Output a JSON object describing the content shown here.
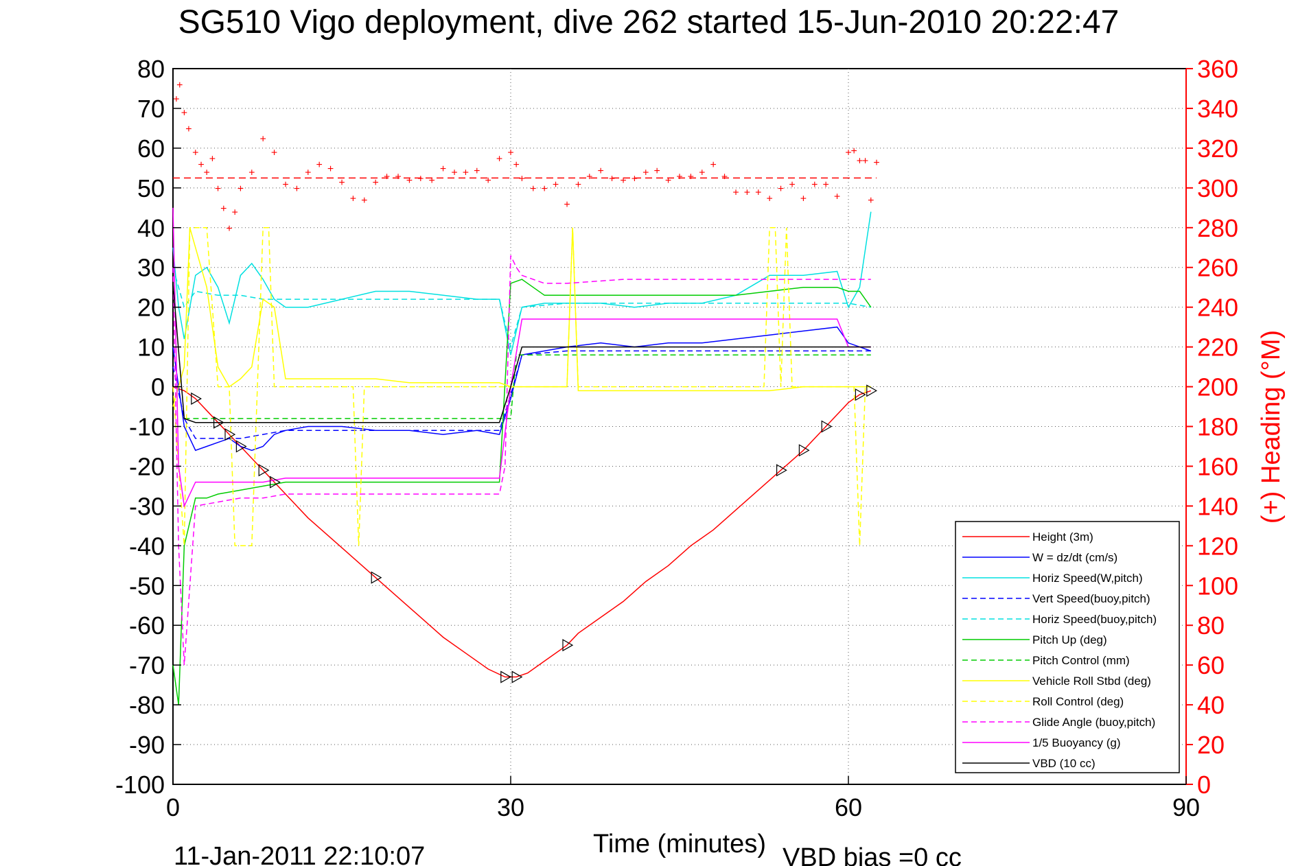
{
  "chart_data": {
    "type": "line",
    "title": "SG510 Vigo deployment, dive 262 started 15-Jun-2010 20:22:47",
    "xlabel": "Time (minutes)",
    "ylabel_right": "(+) Heading (°M)",
    "footer_date": "11-Jan-2011 22:10:07",
    "footer_vbd": "VBD bias =0 cc",
    "xlim": [
      0,
      90
    ],
    "ylim": [
      -100,
      80
    ],
    "ylim_right": [
      0,
      360
    ],
    "xticks": [
      0,
      30,
      60,
      90
    ],
    "yticks": [
      80,
      70,
      60,
      50,
      40,
      30,
      20,
      10,
      0,
      -10,
      -20,
      -30,
      -40,
      -50,
      -60,
      -70,
      -80,
      -90,
      -100
    ],
    "yticks_right": [
      360,
      340,
      320,
      300,
      280,
      260,
      240,
      220,
      200,
      180,
      160,
      140,
      120,
      100,
      80,
      60,
      40,
      20,
      0
    ],
    "grid": true,
    "legend_position": "bottom-right",
    "series": [
      {
        "name": "Height (3m)",
        "color": "#ff0000",
        "dash": "solid",
        "x": [
          0,
          1,
          2,
          3,
          4,
          5,
          6,
          7,
          8,
          9,
          10,
          12,
          14,
          16,
          18,
          20,
          22,
          24,
          26,
          28,
          29.5,
          30.5,
          31.5,
          33,
          35,
          36,
          38,
          40,
          42,
          44,
          46,
          48,
          50,
          52,
          54,
          56,
          58,
          60,
          61,
          62
        ],
        "y": [
          0,
          -1,
          -3,
          -6,
          -9,
          -12,
          -15,
          -18,
          -21,
          -24,
          -27,
          -33,
          -38,
          -43,
          -48,
          -53,
          -58,
          -63,
          -67,
          -71,
          -73,
          -73,
          -72,
          -69,
          -65,
          -62,
          -58,
          -54,
          -49,
          -45,
          -40,
          -36,
          -31,
          -26,
          -21,
          -16,
          -10,
          -4,
          -2,
          -1
        ]
      },
      {
        "name": "W = dz/dt (cm/s)",
        "color": "#0000ff",
        "dash": "solid",
        "x": [
          0,
          0.5,
          1,
          2,
          3,
          4,
          5,
          6,
          7,
          8,
          9,
          10,
          12,
          15,
          18,
          21,
          24,
          27,
          29,
          30,
          31,
          33,
          35,
          38,
          41,
          44,
          47,
          50,
          53,
          56,
          59,
          60,
          61,
          62
        ],
        "y": [
          10,
          0,
          -10,
          -16,
          -15,
          -14,
          -13,
          -15,
          -16,
          -15,
          -12,
          -11,
          -10,
          -10,
          -11,
          -11,
          -12,
          -11,
          -12,
          -3,
          8,
          9,
          10,
          11,
          10,
          11,
          11,
          12,
          13,
          14,
          15,
          11,
          10,
          9
        ]
      },
      {
        "name": "Horiz Speed(W,pitch)",
        "color": "#00e0e0",
        "dash": "solid",
        "x": [
          0,
          0.5,
          1,
          2,
          3,
          4,
          5,
          6,
          7,
          8,
          9,
          10,
          12,
          15,
          18,
          21,
          24,
          27,
          29,
          30,
          31,
          33,
          35,
          38,
          41,
          44,
          47,
          50,
          53,
          56,
          59,
          60,
          61,
          62
        ],
        "y": [
          35,
          20,
          12,
          28,
          30,
          25,
          16,
          28,
          31,
          27,
          22,
          20,
          20,
          22,
          24,
          24,
          23,
          22,
          22,
          8,
          20,
          21,
          21,
          21,
          20,
          21,
          21,
          23,
          28,
          28,
          29,
          20,
          25,
          44
        ]
      },
      {
        "name": "Vert Speed(buoy,pitch)",
        "color": "#0000ff",
        "dash": "dashed",
        "x": [
          0,
          1,
          2,
          4,
          6,
          8,
          10,
          15,
          20,
          25,
          29,
          30,
          31,
          35,
          40,
          45,
          50,
          55,
          60,
          62
        ],
        "y": [
          5,
          -8,
          -13,
          -13,
          -13,
          -12,
          -11,
          -11,
          -11,
          -11,
          -11,
          -2,
          8,
          9,
          9,
          9,
          9,
          9,
          9,
          9
        ]
      },
      {
        "name": "Horiz Speed(buoy,pitch)",
        "color": "#00e0e0",
        "dash": "dashed",
        "x": [
          0,
          1,
          2,
          4,
          6,
          8,
          10,
          15,
          20,
          25,
          29,
          30,
          31,
          35,
          40,
          45,
          50,
          55,
          60,
          62
        ],
        "y": [
          30,
          20,
          24,
          23,
          23,
          22,
          22,
          22,
          22,
          22,
          22,
          10,
          20,
          21,
          21,
          21,
          21,
          21,
          21,
          20
        ]
      },
      {
        "name": "Pitch Up (deg)",
        "color": "#00cc00",
        "dash": "solid",
        "x": [
          0,
          0.5,
          1,
          2,
          3,
          4,
          6,
          8,
          10,
          15,
          20,
          25,
          28,
          29,
          30,
          31,
          33,
          35,
          38,
          41,
          44,
          47,
          50,
          53,
          56,
          59,
          60,
          61,
          62
        ],
        "y": [
          -70,
          -80,
          -40,
          -28,
          -28,
          -27,
          -26,
          -25,
          -24,
          -24,
          -24,
          -24,
          -24,
          -24,
          26,
          27,
          23,
          23,
          23,
          23,
          23,
          23,
          23,
          24,
          25,
          25,
          24,
          24,
          20
        ]
      },
      {
        "name": "Pitch Control (mm)",
        "color": "#00cc00",
        "dash": "dashed",
        "x": [
          1,
          29,
          30,
          30.5,
          62
        ],
        "y": [
          -8,
          -8,
          -8,
          8,
          8
        ]
      },
      {
        "name": "Vehicle Roll Stbd (deg)",
        "color": "#ffff00",
        "dash": "solid",
        "x": [
          0,
          0.5,
          1,
          1.5,
          2,
          2.5,
          3,
          4,
          5,
          6,
          7,
          8,
          9,
          10,
          12,
          15,
          18,
          21,
          24,
          27,
          29,
          30,
          31,
          33,
          35,
          35.5,
          36,
          38,
          41,
          44,
          47,
          50,
          53,
          56,
          59,
          60,
          61,
          62
        ],
        "y": [
          -5,
          0,
          5,
          40,
          35,
          30,
          25,
          5,
          0,
          2,
          5,
          22,
          20,
          2,
          2,
          2,
          2,
          1,
          1,
          1,
          1,
          0,
          0,
          0,
          0,
          40,
          -1,
          -1,
          -1,
          -1,
          -1,
          -1,
          -1,
          0,
          0,
          0,
          0,
          0
        ]
      },
      {
        "name": "Roll Control (deg)",
        "color": "#ffff00",
        "dash": "dashed",
        "x": [
          0,
          1,
          1.5,
          2,
          2.5,
          3,
          4,
          5,
          5.5,
          6,
          7,
          8,
          8.5,
          9,
          16,
          16.5,
          17,
          30,
          35,
          35.5,
          36,
          52.5,
          53,
          53.5,
          54,
          54.5,
          55,
          60.5,
          61,
          61.5,
          62
        ],
        "y": [
          0,
          -40,
          40,
          40,
          40,
          40,
          0,
          0,
          -40,
          -40,
          -40,
          40,
          40,
          0,
          0,
          -40,
          0,
          0,
          0,
          40,
          0,
          0,
          40,
          40,
          0,
          40,
          0,
          0,
          -40,
          0,
          0
        ]
      },
      {
        "name": "Glide Angle (buoy,pitch)",
        "color": "#ff00ff",
        "dash": "dashed",
        "x": [
          0,
          0.5,
          1,
          2,
          4,
          6,
          8,
          10,
          15,
          20,
          25,
          29,
          29.5,
          30,
          30.5,
          31,
          33,
          35,
          40,
          45,
          50,
          55,
          60,
          62
        ],
        "y": [
          30,
          -40,
          -70,
          -30,
          -29,
          -28,
          -28,
          -27,
          -27,
          -27,
          -27,
          -27,
          -20,
          33,
          30,
          28,
          26,
          26,
          27,
          27,
          27,
          27,
          27,
          27
        ]
      },
      {
        "name": "1/5 Buoyancy (g)",
        "color": "#ff00ff",
        "dash": "solid",
        "x": [
          0,
          0.5,
          1,
          2,
          4,
          6,
          8,
          10,
          15,
          20,
          25,
          29,
          30,
          31,
          35,
          40,
          45,
          50,
          55,
          59,
          60,
          62
        ],
        "y": [
          45,
          -20,
          -30,
          -24,
          -24,
          -24,
          -24,
          -23,
          -23,
          -23,
          -23,
          -23,
          0,
          17,
          17,
          17,
          17,
          17,
          17,
          17,
          10,
          10
        ]
      },
      {
        "name": "VBD (10 cc)",
        "color": "#000000",
        "dash": "solid",
        "x": [
          0,
          1,
          2,
          29,
          30,
          31,
          62
        ],
        "y": [
          26,
          -8,
          -9,
          -9,
          0,
          10,
          10
        ]
      }
    ],
    "heading": {
      "name": "(+) Heading",
      "color": "#ff0000",
      "mean": 305,
      "x": [
        0.3,
        0.6,
        1,
        1.4,
        2,
        2.5,
        3,
        3.5,
        4,
        4.5,
        5,
        5.5,
        6,
        7,
        8,
        9,
        10,
        11,
        12,
        13,
        14,
        15,
        16,
        17,
        18,
        19,
        20,
        21,
        22,
        23,
        24,
        25,
        26,
        27,
        28,
        29,
        30,
        30.5,
        31,
        32,
        33,
        34,
        35,
        36,
        37,
        38,
        39,
        40,
        41,
        42,
        43,
        44,
        45,
        46,
        47,
        48,
        49,
        50,
        51,
        52,
        53,
        54,
        55,
        56,
        57,
        58,
        59,
        60,
        60.5,
        61,
        61.5,
        62,
        62.5
      ],
      "y": [
        345,
        352,
        338,
        330,
        318,
        312,
        308,
        315,
        300,
        290,
        280,
        288,
        300,
        308,
        325,
        318,
        302,
        300,
        308,
        312,
        310,
        303,
        295,
        294,
        303,
        306,
        306,
        304,
        305,
        304,
        310,
        308,
        308,
        309,
        304,
        315,
        318,
        312,
        305,
        300,
        300,
        302,
        292,
        302,
        306,
        309,
        305,
        304,
        305,
        308,
        309,
        304,
        306,
        306,
        308,
        312,
        306,
        298,
        298,
        298,
        295,
        300,
        302,
        295,
        302,
        302,
        296,
        318,
        319,
        314,
        314,
        294,
        313
      ]
    }
  }
}
